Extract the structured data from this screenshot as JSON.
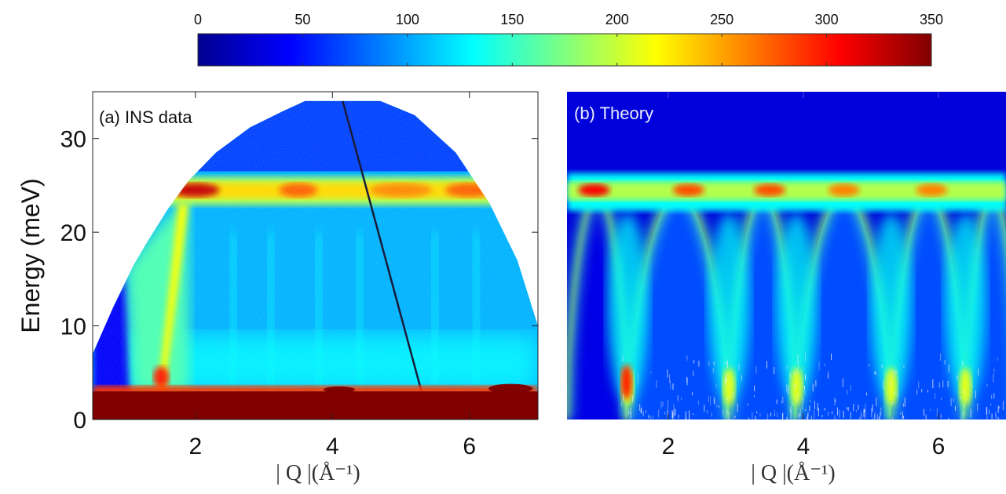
{
  "colorbar": {
    "min": 0,
    "max": 350,
    "ticks": [
      "0",
      "50",
      "100",
      "150",
      "200",
      "250",
      "300",
      "350"
    ],
    "colormap": "jet"
  },
  "chart_data": [
    {
      "type": "heatmap",
      "panel_label": "(a) INS data",
      "xlabel": "| Q |(Å⁻¹)",
      "ylabel": "Energy (meV)",
      "xlim": [
        0.5,
        7.0
      ],
      "ylim": [
        0,
        35
      ],
      "x_ticks": [
        "2",
        "4",
        "6"
      ],
      "y_ticks": [
        "0",
        "10",
        "20",
        "30"
      ],
      "features": {
        "elastic_line_energy_meV": [
          0,
          3
        ],
        "flat_band_energy_meV": 24.5,
        "band_hotspots_Q": [
          2.0,
          3.5,
          5.0,
          6.0
        ]
      }
    },
    {
      "type": "heatmap",
      "panel_label": "(b) Theory",
      "xlabel": "| Q |(Å⁻¹)",
      "ylabel": "",
      "xlim": [
        0.5,
        7.0
      ],
      "ylim": [
        0,
        35
      ],
      "x_ticks": [
        "2",
        "4",
        "6"
      ],
      "features": {
        "flat_band_energy_meV": 24.5,
        "band_hotspots_Q": [
          0.9,
          2.3,
          3.5,
          4.6,
          5.9
        ],
        "arc_minima_Q": [
          1.4,
          2.9,
          3.9,
          5.3,
          6.4
        ]
      }
    }
  ]
}
